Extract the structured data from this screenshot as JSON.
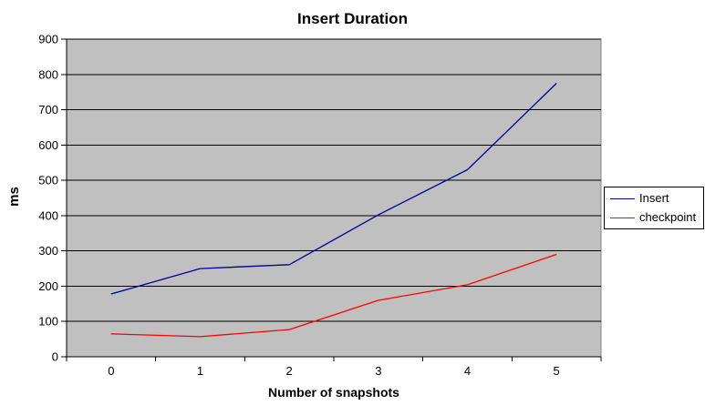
{
  "title": "Insert Duration",
  "chart_data": {
    "type": "line",
    "title": "Insert Duration",
    "xlabel": "Number of snapshots",
    "ylabel": "ms",
    "categories": [
      "0",
      "1",
      "2",
      "3",
      "4",
      "5"
    ],
    "series": [
      {
        "name": "Insert",
        "color": "#000099",
        "values": [
          178,
          250,
          261,
          402,
          530,
          775
        ]
      },
      {
        "name": "checkpoint",
        "color": "#ff0000",
        "values": [
          65,
          57,
          77,
          160,
          204,
          290
        ]
      }
    ],
    "ylim": [
      0,
      900
    ],
    "ytick_step": 100,
    "grid": true,
    "legend_position": "right",
    "plot_bg_color": "#c0c0c0",
    "plot_border_color": "#848484",
    "gridline_color": "#000000",
    "axis_color": "#000000",
    "outer_bg_color": "#ffffff"
  }
}
